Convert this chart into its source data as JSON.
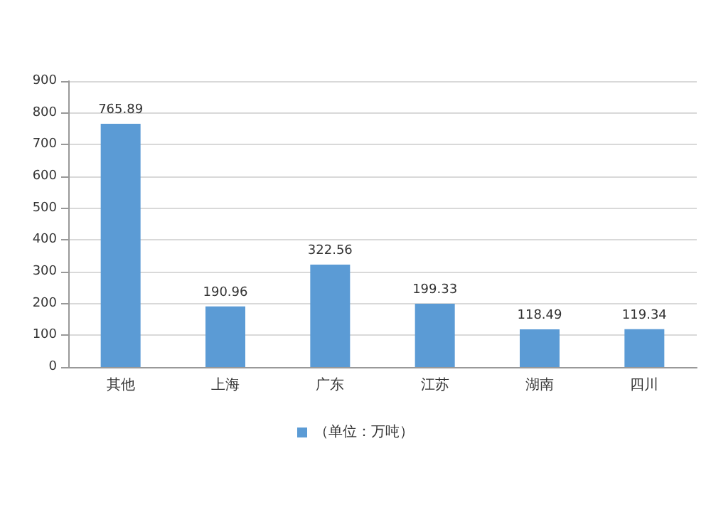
{
  "chart_data": {
    "type": "bar",
    "categories": [
      "其他",
      "上海",
      "广东",
      "江苏",
      "湖南",
      "四川"
    ],
    "series": [
      {
        "name": "（单位：万吨）",
        "color": "#5b9bd5",
        "values": [
          765.89,
          190.96,
          322.56,
          199.33,
          118.49,
          119.34
        ]
      }
    ],
    "ylim": [
      0,
      900
    ],
    "yticks": [
      0,
      100,
      200,
      300,
      400,
      500,
      600,
      700,
      800,
      900
    ],
    "grid": "y",
    "legend": "bottom",
    "data_labels": true
  }
}
